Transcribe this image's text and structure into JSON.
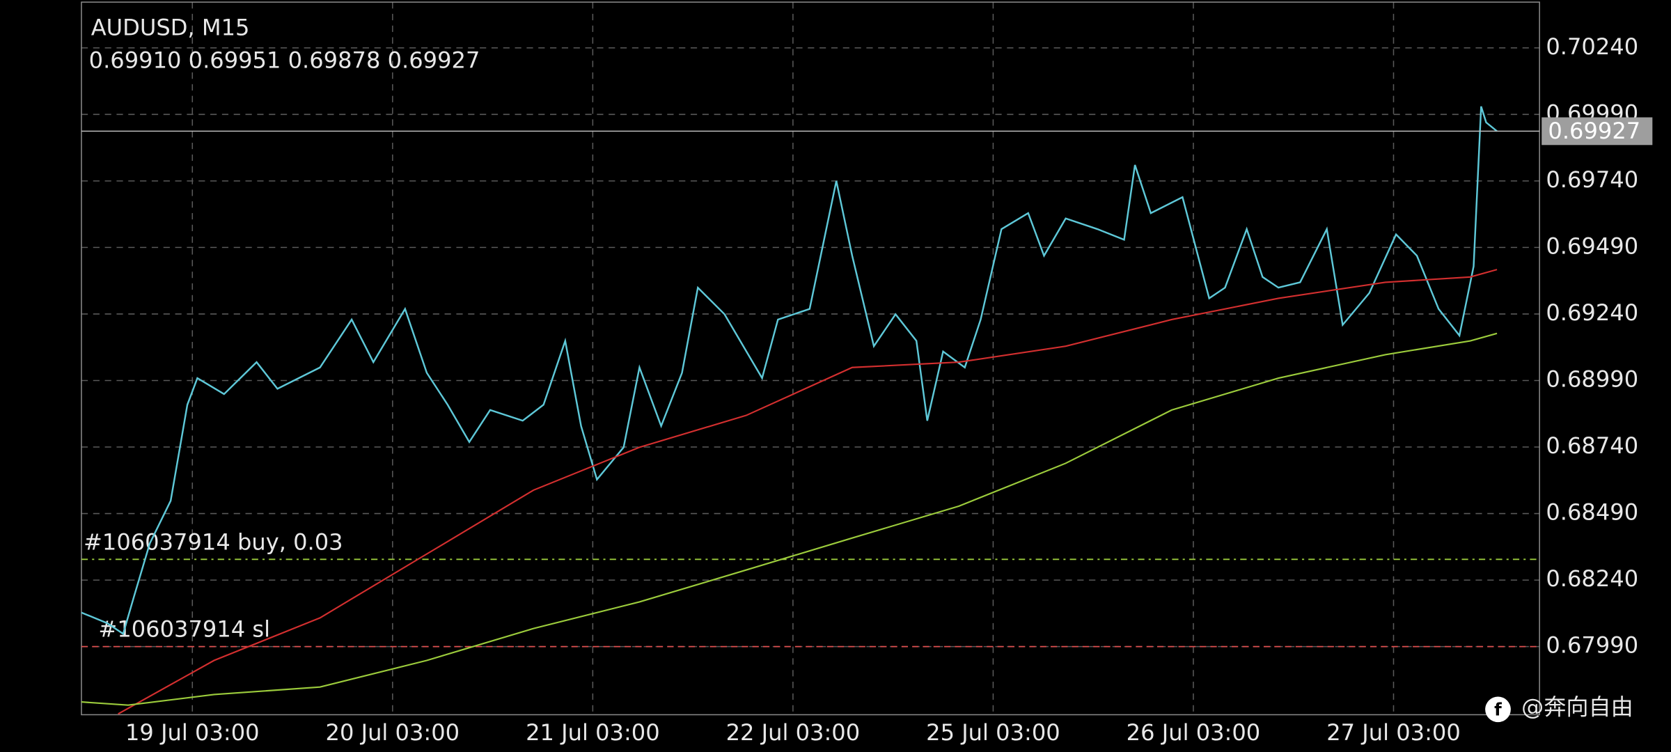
{
  "chart_data": {
    "type": "line",
    "symbol": "AUDUSD, M15",
    "ohlc": "0.69910 0.69951 0.69878 0.69927",
    "watermark": "@奔向自由",
    "xlim": [
      -13.3,
      161.5
    ],
    "xticks": [
      {
        "value": 0,
        "label": "19 Jul 03:00"
      },
      {
        "value": 24,
        "label": "20 Jul 03:00"
      },
      {
        "value": 48,
        "label": "21 Jul 03:00"
      },
      {
        "value": 72,
        "label": "22 Jul 03:00"
      },
      {
        "value": 96,
        "label": "25 Jul 03:00"
      },
      {
        "value": 120,
        "label": "26 Jul 03:00"
      },
      {
        "value": 144,
        "label": "27 Jul 03:00"
      }
    ],
    "ylim": [
      0.67734,
      0.70412
    ],
    "yticks": [
      {
        "value": 0.7024,
        "label": "0.70240"
      },
      {
        "value": 0.6999,
        "label": "0.69990"
      },
      {
        "value": 0.6974,
        "label": "0.69740"
      },
      {
        "value": 0.6949,
        "label": "0.69490"
      },
      {
        "value": 0.6924,
        "label": "0.69240"
      },
      {
        "value": 0.6899,
        "label": "0.68990"
      },
      {
        "value": 0.6874,
        "label": "0.68740"
      },
      {
        "value": 0.6849,
        "label": "0.68490"
      },
      {
        "value": 0.6824,
        "label": "0.68240"
      },
      {
        "value": 0.6799,
        "label": "0.67990"
      }
    ],
    "grid": true,
    "series": [
      {
        "color": "#5ec8d8",
        "x": [
          -13.3,
          -10.2,
          -8.3,
          -7.0,
          -5.1,
          -2.6,
          -0.6,
          0.6,
          3.8,
          7.7,
          10.2,
          15.3,
          19.1,
          21.7,
          25.5,
          28.1,
          30.6,
          33.2,
          35.7,
          39.6,
          42.1,
          44.7,
          46.6,
          48.5,
          51.7,
          53.6,
          56.2,
          58.7,
          60.6,
          63.8,
          68.3,
          70.2,
          74.0,
          77.2,
          79.1,
          81.7,
          84.3,
          86.8,
          88.1,
          90.0,
          92.6,
          94.5,
          97.0,
          100.2,
          102.1,
          104.7,
          108.5,
          111.7,
          113.0,
          114.9,
          118.7,
          121.9,
          123.8,
          126.4,
          128.3,
          130.2,
          132.8,
          136.0,
          137.9,
          141.1,
          144.3,
          146.8,
          149.4,
          151.9,
          153.6,
          154.5,
          155.1,
          156.4
        ],
        "values": [
          0.68118,
          0.68078,
          0.68038,
          0.68178,
          0.68378,
          0.68538,
          0.68899,
          0.68999,
          0.68939,
          0.69059,
          0.68959,
          0.69039,
          0.69219,
          0.69059,
          0.69259,
          0.69019,
          0.68899,
          0.68759,
          0.68879,
          0.68839,
          0.68899,
          0.69139,
          0.68819,
          0.68618,
          0.68739,
          0.69039,
          0.68819,
          0.69019,
          0.69339,
          0.69239,
          0.68999,
          0.69219,
          0.69259,
          0.6974,
          0.69459,
          0.69119,
          0.69239,
          0.69139,
          0.68839,
          0.69099,
          0.69039,
          0.69219,
          0.69559,
          0.69619,
          0.69459,
          0.69599,
          0.69559,
          0.69519,
          0.698,
          0.69619,
          0.69679,
          0.69299,
          0.69339,
          0.69559,
          0.69379,
          0.69339,
          0.69359,
          0.69559,
          0.69199,
          0.69319,
          0.69539,
          0.69459,
          0.69259,
          0.69159,
          0.69419,
          0.7002,
          0.6996,
          0.69927
        ]
      },
      {
        "color": "#d32f2f",
        "x": [
          -8.9,
          2.6,
          15.3,
          28.1,
          40.9,
          53.6,
          66.4,
          79.1,
          91.9,
          104.7,
          117.4,
          130.2,
          143.0,
          153.2,
          156.4
        ],
        "values": [
          0.67737,
          0.67938,
          0.68098,
          0.68338,
          0.68578,
          0.68739,
          0.68859,
          0.69039,
          0.69059,
          0.69119,
          0.69219,
          0.69299,
          0.69359,
          0.69379,
          0.69407
        ]
      },
      {
        "color": "#9ccc3c",
        "x": [
          -13.3,
          -7.7,
          2.6,
          15.3,
          28.1,
          40.9,
          53.6,
          66.4,
          79.1,
          91.9,
          104.7,
          117.4,
          130.2,
          143.0,
          153.2,
          156.4
        ],
        "values": [
          0.67782,
          0.6777,
          0.6781,
          0.67838,
          0.67938,
          0.68058,
          0.68158,
          0.68278,
          0.68398,
          0.68518,
          0.68679,
          0.68879,
          0.68999,
          0.69087,
          0.69139,
          0.69167
        ]
      }
    ],
    "price_line": {
      "value": 0.69927,
      "color": "#bdbdbd"
    },
    "levels": [
      {
        "value": 0.68318,
        "text": "#106037914 buy, 0.03",
        "color": "#9ccc3c",
        "dash": "6 4 2 4"
      },
      {
        "value": 0.6799,
        "text": "#106037914 sl",
        "color": "#e05050",
        "dash": "6 4"
      }
    ]
  }
}
